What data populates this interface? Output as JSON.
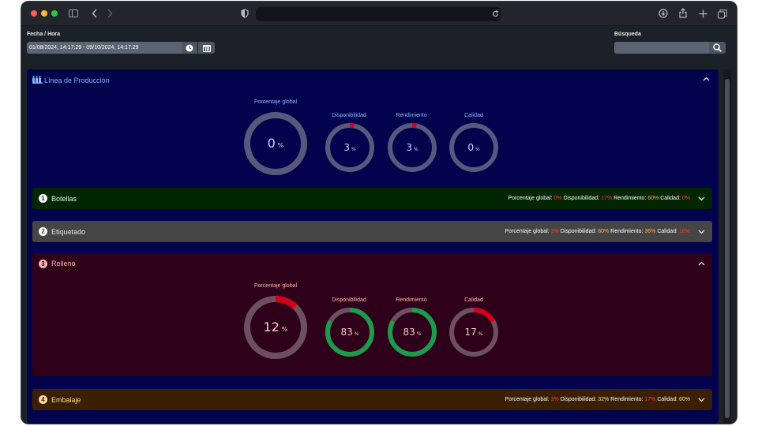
{
  "filters": {
    "date_label": "Fecha / Hora",
    "date_value": "01/08/2024, 14:17:29 - 09/10/2024, 14:17:29",
    "search_label": "Búsqueda",
    "search_value": ""
  },
  "panel": {
    "title": "Línea de Producción",
    "gauges": [
      {
        "label": "Porcentaje global",
        "value": 0,
        "display": "0"
      },
      {
        "label": "Disponibilidad",
        "value": 3,
        "display": "3"
      },
      {
        "label": "Rendimiento",
        "value": 3,
        "display": "3"
      },
      {
        "label": "Calidad",
        "value": 0,
        "display": "0"
      }
    ]
  },
  "stations": [
    {
      "number": "1",
      "title": "Botellas",
      "bg": "#022602",
      "title_color": "#d6ffd6",
      "stats": [
        {
          "label": "Porcentaje global:",
          "value": "0%"
        },
        {
          "label": "Disponibilidad:",
          "value": "17%"
        },
        {
          "label": "Rendimiento:",
          "value": "60%"
        },
        {
          "label": "Calidad:",
          "value": "0%"
        }
      ]
    },
    {
      "number": "2",
      "title": "Etiquetado",
      "bg": "#454545",
      "title_color": "#e8e8e8",
      "stats": [
        {
          "label": "Porcentaje global:",
          "value": "3%"
        },
        {
          "label": "Disponibilidad:",
          "value": "60%"
        },
        {
          "label": "Rendimiento:",
          "value": "36%"
        },
        {
          "label": "Calidad:",
          "value": "16%"
        }
      ]
    },
    {
      "number": "3",
      "title": "Relleno",
      "bg": "#2e0019",
      "title_color": "#ffb3b3",
      "gauges": [
        {
          "label": "Porcentaje global",
          "value": 12,
          "display": "12"
        },
        {
          "label": "Disponibilidad",
          "value": 83,
          "display": "83"
        },
        {
          "label": "Rendimiento",
          "value": 83,
          "display": "83"
        },
        {
          "label": "Calidad",
          "value": 17,
          "display": "17"
        }
      ]
    },
    {
      "number": "4",
      "title": "Embalaje",
      "bg": "#3a1f02",
      "title_color": "#ffd79a",
      "stats": [
        {
          "label": "Porcentaje global:",
          "value": "3%"
        },
        {
          "label": "Disponibilidad:",
          "value": "32%"
        },
        {
          "label": "Rendimiento:",
          "value": "17%"
        },
        {
          "label": "Calidad:",
          "value": "60%"
        }
      ]
    }
  ],
  "unit": "%",
  "icons": [
    "sidebar-icon",
    "back-icon",
    "forward-icon",
    "shield-icon",
    "reload-icon",
    "download-icon",
    "share-icon",
    "plus-icon",
    "tabs-icon",
    "clock-icon",
    "calendar-icon",
    "search-icon",
    "factory-icon",
    "chevron-up-icon",
    "chevron-down-icon"
  ]
}
